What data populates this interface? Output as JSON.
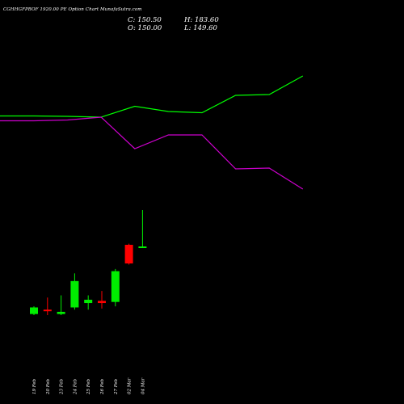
{
  "header": {
    "title": "CGHHGFPBOF 1920.00 PE Option Chart MunafaSutra.com",
    "c_label": "C:",
    "c_value": "150.50",
    "h_label": "H:",
    "h_value": "183.60",
    "o_label": "O:",
    "o_value": "150.00",
    "l_label": "L:",
    "l_value": "149.60"
  },
  "chart_data": {
    "type": "candlestick",
    "title": "CGHHGFPBOF 1920.00 PE Option Chart MunafaSutra.com",
    "categories": [
      "19 Feb",
      "20 Feb",
      "23 Feb",
      "24 Feb",
      "25 Feb",
      "26 Feb",
      "27 Feb",
      "02 Mar",
      "04 Mar"
    ],
    "candles": [
      {
        "date": "19 Feb",
        "open": 89.0,
        "high": 96.0,
        "low": 88.0,
        "close": 95.0,
        "color": "green"
      },
      {
        "date": "20 Feb",
        "open": 93.0,
        "high": 104.0,
        "low": 88.0,
        "close": 92.0,
        "color": "red"
      },
      {
        "date": "23 Feb",
        "open": 89.0,
        "high": 106.0,
        "low": 88.0,
        "close": 91.0,
        "color": "green"
      },
      {
        "date": "24 Feb",
        "open": 95.0,
        "high": 126.0,
        "low": 93.0,
        "close": 119.0,
        "color": "green"
      },
      {
        "date": "25 Feb",
        "open": 99.0,
        "high": 106.0,
        "low": 93.0,
        "close": 102.0,
        "color": "green"
      },
      {
        "date": "26 Feb",
        "open": 101.0,
        "high": 110.0,
        "low": 94.0,
        "close": 99.0,
        "color": "red"
      },
      {
        "date": "27 Feb",
        "open": 100.0,
        "high": 130.0,
        "low": 96.0,
        "close": 128.0,
        "color": "green"
      },
      {
        "date": "02 Mar",
        "open": 152.0,
        "high": 153.0,
        "low": 134.0,
        "close": 135.0,
        "color": "red"
      },
      {
        "date": "04 Mar",
        "open": 150.0,
        "high": 183.6,
        "low": 149.6,
        "close": 150.5,
        "color": "green"
      }
    ],
    "lines": [
      {
        "color": "#00ff00",
        "x": [
          -3,
          -2,
          -1,
          0,
          1,
          2,
          3,
          4,
          5,
          6,
          7,
          8
        ],
        "values": [
          143.5,
          143.5,
          143.5,
          143.5,
          144.0,
          145.0,
          131.5,
          138.0,
          139.5,
          118.0,
          117.0,
          94.0
        ]
      },
      {
        "color": "#cc00cc",
        "x": [
          -3,
          -2,
          -1,
          0,
          1,
          2,
          3,
          4,
          5,
          6,
          7,
          8
        ],
        "values": [
          149.5,
          149.5,
          149.5,
          149.5,
          148.5,
          145.0,
          184.0,
          167.0,
          167.0,
          209.0,
          208.0,
          234.0
        ]
      }
    ],
    "colors": {
      "up": "#00ee00",
      "down": "#ff0000",
      "background": "#000000"
    }
  }
}
